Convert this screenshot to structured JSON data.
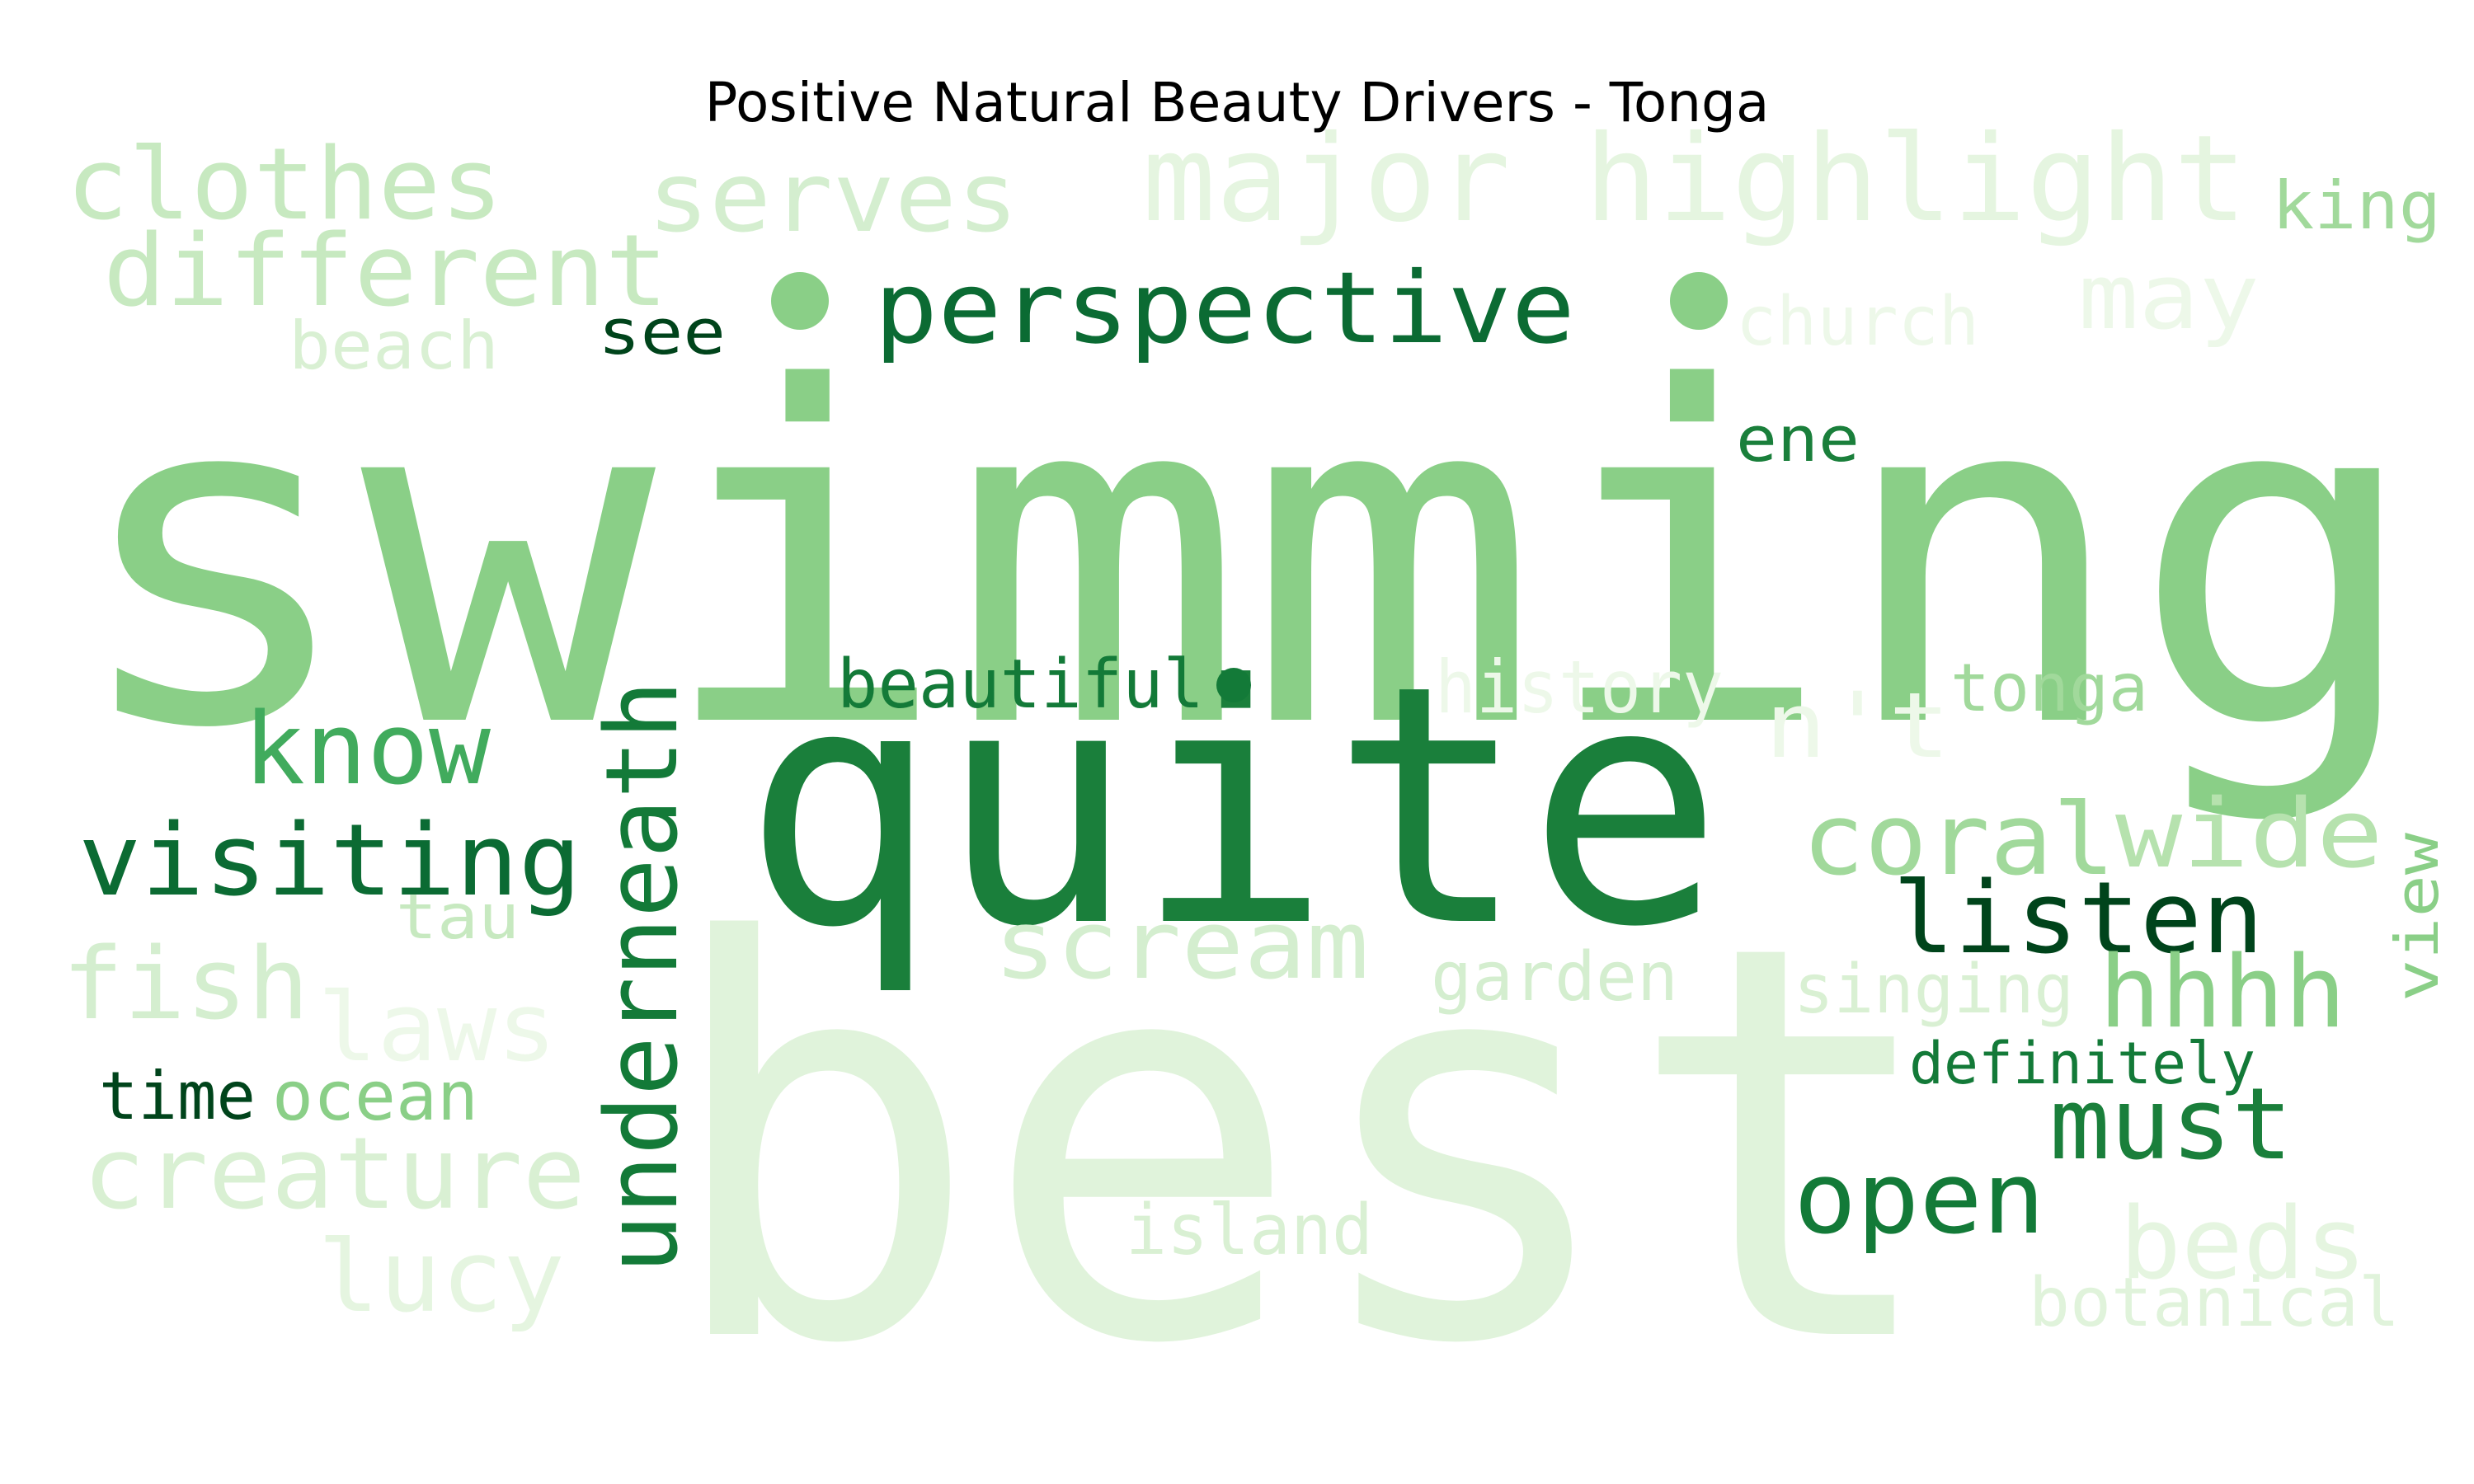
{
  "title": "Positive Natural Beauty Drivers - Tonga",
  "palette": {
    "darkest": "#00441b",
    "dark": "#1a7f3b",
    "mid": "#41ab5d",
    "light": "#8acf87",
    "pale": "#c7e9c0",
    "palest": "#e0f3db"
  },
  "words": [
    {
      "text": "swimming",
      "color": "#8acf87"
    },
    {
      "text": "best",
      "color": "#e0f3db"
    },
    {
      "text": "quite",
      "color": "#1a7f3b"
    },
    {
      "text": "major highlight",
      "color": "#e5f5e0"
    },
    {
      "text": "clothes",
      "color": "#c7e9c0"
    },
    {
      "text": "serves",
      "color": "#d4eecf"
    },
    {
      "text": "different",
      "color": "#c7e9c0"
    },
    {
      "text": "perspective",
      "color": "#0b6b33"
    },
    {
      "text": "king",
      "color": "#a1d99b"
    },
    {
      "text": "may",
      "color": "#edf8e9"
    },
    {
      "text": "church",
      "color": "#edf8e9"
    },
    {
      "text": "beach",
      "color": "#d9f0d3"
    },
    {
      "text": "see",
      "color": "#00441b"
    },
    {
      "text": "ene",
      "color": "#1a7f3b"
    },
    {
      "text": "beautiful",
      "color": "#137a38"
    },
    {
      "text": "history",
      "color": "#edf8e9"
    },
    {
      "text": "tonga",
      "color": "#a1d99b"
    },
    {
      "text": "n't",
      "color": "#edf8e9"
    },
    {
      "text": "know",
      "color": "#41ab5d"
    },
    {
      "text": "visiting",
      "color": "#0b6b33"
    },
    {
      "text": "underneath",
      "color": "#137a38"
    },
    {
      "text": "coral",
      "color": "#a1d99b"
    },
    {
      "text": "wide",
      "color": "#b6e2ae"
    },
    {
      "text": "view",
      "color": "#8acf87"
    },
    {
      "text": "listen",
      "color": "#00441b"
    },
    {
      "text": "tau",
      "color": "#c7e9c0"
    },
    {
      "text": "scream",
      "color": "#d4eecf"
    },
    {
      "text": "garden",
      "color": "#d4eecf"
    },
    {
      "text": "singing",
      "color": "#d9f0d3"
    },
    {
      "text": "hhhh",
      "color": "#8acf87"
    },
    {
      "text": "fish",
      "color": "#d4eecf"
    },
    {
      "text": "laws",
      "color": "#edf8e9"
    },
    {
      "text": "definitely",
      "color": "#137a38"
    },
    {
      "text": "time",
      "color": "#00441b"
    },
    {
      "text": "ocean",
      "color": "#8acf87"
    },
    {
      "text": "must",
      "color": "#1a7f3b"
    },
    {
      "text": "creature",
      "color": "#d9f0d3"
    },
    {
      "text": "open",
      "color": "#137a38"
    },
    {
      "text": "island",
      "color": "#d9f0d3"
    },
    {
      "text": "beds",
      "color": "#e5f5e0"
    },
    {
      "text": "lucy",
      "color": "#e5f5e0"
    },
    {
      "text": "botanical",
      "color": "#e0f3db"
    }
  ],
  "dots": [
    {
      "color": "#8acf87"
    },
    {
      "color": "#8acf87"
    },
    {
      "color": "#137a38"
    }
  ]
}
